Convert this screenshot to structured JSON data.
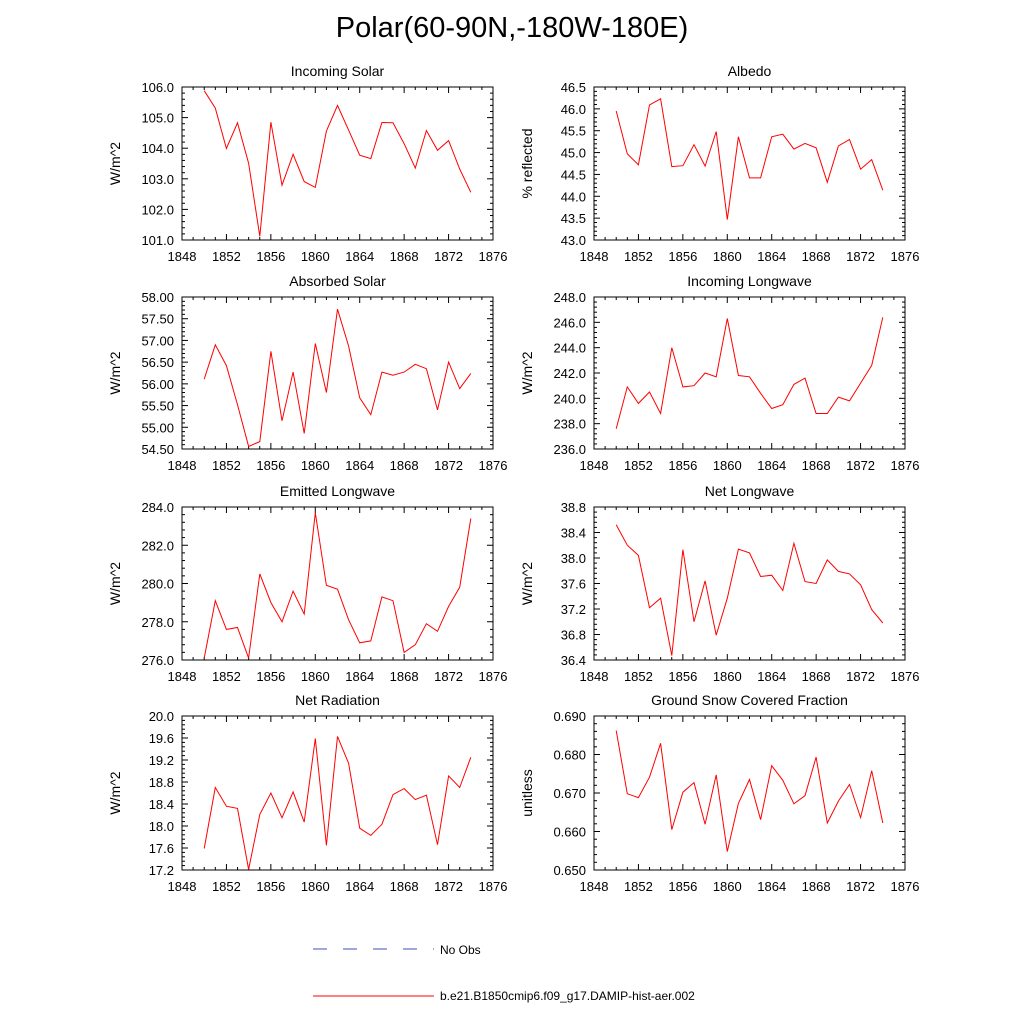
{
  "figure": {
    "title": "Polar(60-90N,-180W-180E)",
    "legend": [
      {
        "label": "No Obs",
        "color": "#3d4fb0",
        "style": "dashed"
      },
      {
        "label": "b.e21.B1850cmip6.f09_g17.DAMIP-hist-aer.002",
        "color": "#ff0000",
        "style": "solid"
      }
    ],
    "line_color": "#ff0000"
  },
  "chart_data": [
    {
      "type": "line",
      "title": "Incoming Solar",
      "ylabel": "W/m^2",
      "xlim": [
        1848,
        1876
      ],
      "ylim": [
        101.0,
        106.0
      ],
      "xticks": [
        "1848",
        "1852",
        "1856",
        "1860",
        "1864",
        "1868",
        "1872",
        "1876"
      ],
      "yticks": [
        "101.0",
        "102.0",
        "103.0",
        "104.0",
        "105.0",
        "106.0"
      ],
      "x": [
        1850,
        1851,
        1852,
        1853,
        1854,
        1855,
        1856,
        1857,
        1858,
        1859,
        1860,
        1861,
        1862,
        1863,
        1864,
        1865,
        1866,
        1867,
        1868,
        1869,
        1870,
        1871,
        1872,
        1873,
        1874
      ],
      "series": [
        {
          "name": "b.e21.B1850cmip6.f09_g17.DAMIP-hist-aer.002",
          "values": [
            105.88,
            105.31,
            103.99,
            104.83,
            103.51,
            101.12,
            104.85,
            102.79,
            103.8,
            102.91,
            102.72,
            104.56,
            105.4,
            104.59,
            103.77,
            103.66,
            104.84,
            104.83,
            104.15,
            103.35,
            104.58,
            103.93,
            104.25,
            103.32,
            102.56
          ]
        }
      ]
    },
    {
      "type": "line",
      "title": "Albedo",
      "ylabel": "% reflected",
      "xlim": [
        1848,
        1876
      ],
      "ylim": [
        43.0,
        46.5
      ],
      "xticks": [
        "1848",
        "1852",
        "1856",
        "1860",
        "1864",
        "1868",
        "1872",
        "1876"
      ],
      "yticks": [
        "43.0",
        "43.5",
        "44.0",
        "44.5",
        "45.0",
        "45.5",
        "46.0",
        "46.5"
      ],
      "x": [
        1850,
        1851,
        1852,
        1853,
        1854,
        1855,
        1856,
        1857,
        1858,
        1859,
        1860,
        1861,
        1862,
        1863,
        1864,
        1865,
        1866,
        1867,
        1868,
        1869,
        1870,
        1871,
        1872,
        1873,
        1874
      ],
      "series": [
        {
          "name": "b.e21.B1850cmip6.f09_g17.DAMIP-hist-aer.002",
          "values": [
            45.95,
            44.97,
            44.72,
            46.09,
            46.23,
            44.68,
            44.7,
            45.18,
            44.69,
            45.48,
            43.47,
            45.36,
            44.42,
            44.42,
            45.36,
            45.42,
            45.08,
            45.21,
            45.11,
            44.32,
            45.15,
            45.3,
            44.62,
            44.84,
            44.14
          ]
        }
      ]
    },
    {
      "type": "line",
      "title": "Absorbed Solar",
      "ylabel": "W/m^2",
      "xlim": [
        1848,
        1876
      ],
      "ylim": [
        54.5,
        58.0
      ],
      "xticks": [
        "1848",
        "1852",
        "1856",
        "1860",
        "1864",
        "1868",
        "1872",
        "1876"
      ],
      "yticks": [
        "54.50",
        "55.00",
        "55.50",
        "56.00",
        "56.50",
        "57.00",
        "57.50",
        "58.00"
      ],
      "x": [
        1850,
        1851,
        1852,
        1853,
        1854,
        1855,
        1856,
        1857,
        1858,
        1859,
        1860,
        1861,
        1862,
        1863,
        1864,
        1865,
        1866,
        1867,
        1868,
        1869,
        1870,
        1871,
        1872,
        1873,
        1874
      ],
      "series": [
        {
          "name": "b.e21.B1850cmip6.f09_g17.DAMIP-hist-aer.002",
          "values": [
            56.11,
            56.9,
            56.42,
            55.52,
            54.56,
            54.67,
            56.75,
            55.15,
            56.27,
            54.86,
            56.93,
            55.8,
            57.72,
            56.87,
            55.68,
            55.29,
            56.27,
            56.2,
            56.27,
            56.45,
            56.35,
            55.4,
            56.5,
            55.89,
            56.24
          ]
        }
      ]
    },
    {
      "type": "line",
      "title": "Incoming Longwave",
      "ylabel": "W/m^2",
      "xlim": [
        1848,
        1876
      ],
      "ylim": [
        236.0,
        248.0
      ],
      "xticks": [
        "1848",
        "1852",
        "1856",
        "1860",
        "1864",
        "1868",
        "1872",
        "1876"
      ],
      "yticks": [
        "236.0",
        "238.0",
        "240.0",
        "242.0",
        "244.0",
        "246.0",
        "248.0"
      ],
      "x": [
        1850,
        1851,
        1852,
        1853,
        1854,
        1855,
        1856,
        1857,
        1858,
        1859,
        1860,
        1861,
        1862,
        1863,
        1864,
        1865,
        1866,
        1867,
        1868,
        1869,
        1870,
        1871,
        1872,
        1873,
        1874
      ],
      "series": [
        {
          "name": "b.e21.B1850cmip6.f09_g17.DAMIP-hist-aer.002",
          "values": [
            237.6,
            240.9,
            239.6,
            240.5,
            238.8,
            244.0,
            240.9,
            241.0,
            242.0,
            241.7,
            246.3,
            241.8,
            241.7,
            240.4,
            239.2,
            239.5,
            241.1,
            241.6,
            238.8,
            238.8,
            240.1,
            239.8,
            241.2,
            242.6,
            246.4
          ]
        }
      ]
    },
    {
      "type": "line",
      "title": "Emitted Longwave",
      "ylabel": "W/m^2",
      "xlim": [
        1848,
        1876
      ],
      "ylim": [
        276.0,
        284.0
      ],
      "xticks": [
        "1848",
        "1852",
        "1856",
        "1860",
        "1864",
        "1868",
        "1872",
        "1876"
      ],
      "yticks": [
        "276.0",
        "278.0",
        "280.0",
        "282.0",
        "284.0"
      ],
      "x": [
        1850,
        1851,
        1852,
        1853,
        1854,
        1855,
        1856,
        1857,
        1858,
        1859,
        1860,
        1861,
        1862,
        1863,
        1864,
        1865,
        1866,
        1867,
        1868,
        1869,
        1870,
        1871,
        1872,
        1873,
        1874
      ],
      "series": [
        {
          "name": "b.e21.B1850cmip6.f09_g17.DAMIP-hist-aer.002",
          "values": [
            276.1,
            279.1,
            277.6,
            277.7,
            276.1,
            280.5,
            279.0,
            278.0,
            279.6,
            278.4,
            283.7,
            279.9,
            279.7,
            278.1,
            276.9,
            277.0,
            279.3,
            279.1,
            276.4,
            276.8,
            277.9,
            277.5,
            278.8,
            279.8,
            283.4
          ]
        }
      ]
    },
    {
      "type": "line",
      "title": "Net Longwave",
      "ylabel": "W/m^2",
      "xlim": [
        1848,
        1876
      ],
      "ylim": [
        36.4,
        38.8
      ],
      "xticks": [
        "1848",
        "1852",
        "1856",
        "1860",
        "1864",
        "1868",
        "1872",
        "1876"
      ],
      "yticks": [
        "36.4",
        "36.8",
        "37.2",
        "37.6",
        "38.0",
        "38.4",
        "38.8"
      ],
      "x": [
        1850,
        1851,
        1852,
        1853,
        1854,
        1855,
        1856,
        1857,
        1858,
        1859,
        1860,
        1861,
        1862,
        1863,
        1864,
        1865,
        1866,
        1867,
        1868,
        1869,
        1870,
        1871,
        1872,
        1873,
        1874
      ],
      "series": [
        {
          "name": "b.e21.B1850cmip6.f09_g17.DAMIP-hist-aer.002",
          "values": [
            38.52,
            38.2,
            38.04,
            37.22,
            37.37,
            36.47,
            38.13,
            37.0,
            37.64,
            36.79,
            37.37,
            38.14,
            38.08,
            37.71,
            37.73,
            37.49,
            38.23,
            37.63,
            37.6,
            37.97,
            37.79,
            37.75,
            37.58,
            37.19,
            36.98
          ]
        }
      ]
    },
    {
      "type": "line",
      "title": "Net Radiation",
      "ylabel": "W/m^2",
      "xlim": [
        1848,
        1876
      ],
      "ylim": [
        17.2,
        20.0
      ],
      "xticks": [
        "1848",
        "1852",
        "1856",
        "1860",
        "1864",
        "1868",
        "1872",
        "1876"
      ],
      "yticks": [
        "17.2",
        "17.6",
        "18.0",
        "18.4",
        "18.8",
        "19.2",
        "19.6",
        "20.0"
      ],
      "x": [
        1850,
        1851,
        1852,
        1853,
        1854,
        1855,
        1856,
        1857,
        1858,
        1859,
        1860,
        1861,
        1862,
        1863,
        1864,
        1865,
        1866,
        1867,
        1868,
        1869,
        1870,
        1871,
        1872,
        1873,
        1874
      ],
      "series": [
        {
          "name": "b.e21.B1850cmip6.f09_g17.DAMIP-hist-aer.002",
          "values": [
            17.59,
            18.7,
            18.36,
            18.32,
            17.21,
            18.21,
            18.6,
            18.15,
            18.62,
            18.07,
            19.59,
            17.65,
            19.63,
            19.14,
            17.96,
            17.83,
            18.03,
            18.57,
            18.68,
            18.48,
            18.56,
            17.66,
            18.91,
            18.7,
            19.25
          ]
        }
      ]
    },
    {
      "type": "line",
      "title": "Ground Snow Covered Fraction",
      "ylabel": "unitless",
      "xlim": [
        1848,
        1876
      ],
      "ylim": [
        0.65,
        0.69
      ],
      "xticks": [
        "1848",
        "1852",
        "1856",
        "1860",
        "1864",
        "1868",
        "1872",
        "1876"
      ],
      "yticks": [
        "0.650",
        "0.660",
        "0.670",
        "0.680",
        "0.690"
      ],
      "x": [
        1850,
        1851,
        1852,
        1853,
        1854,
        1855,
        1856,
        1857,
        1858,
        1859,
        1860,
        1861,
        1862,
        1863,
        1864,
        1865,
        1866,
        1867,
        1868,
        1869,
        1870,
        1871,
        1872,
        1873,
        1874
      ],
      "series": [
        {
          "name": "b.e21.B1850cmip6.f09_g17.DAMIP-hist-aer.002",
          "values": [
            0.6862,
            0.6698,
            0.6688,
            0.6741,
            0.6829,
            0.6605,
            0.6702,
            0.6727,
            0.6619,
            0.6747,
            0.6548,
            0.6673,
            0.6735,
            0.6631,
            0.6771,
            0.6733,
            0.6672,
            0.6693,
            0.6793,
            0.6622,
            0.6679,
            0.6722,
            0.6636,
            0.6758,
            0.6622
          ]
        }
      ]
    }
  ]
}
